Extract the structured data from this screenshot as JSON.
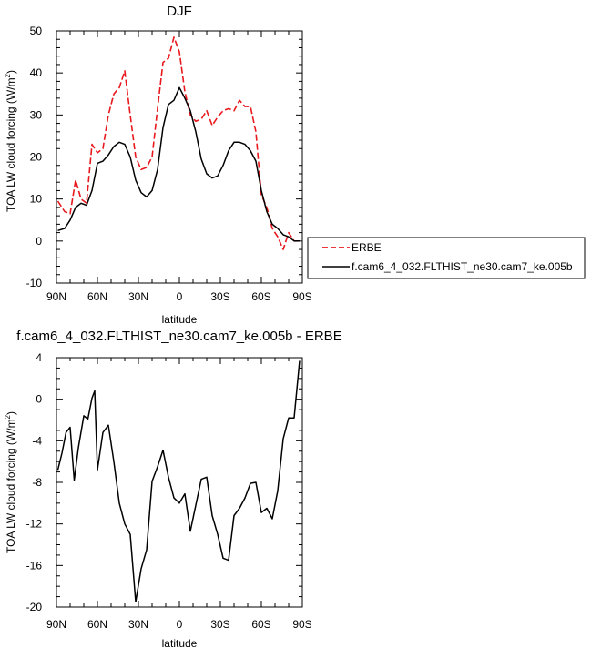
{
  "chart_data": [
    {
      "type": "line",
      "title": "DJF",
      "xlabel": "latitude",
      "ylabel_main": "TOA LW cloud forcing (W/m",
      "ylabel_sup": "2",
      "ylabel_close": ")",
      "xlim": [
        90,
        -90
      ],
      "ylim": [
        -10,
        50
      ],
      "x_ticks": [
        90,
        60,
        30,
        0,
        -30,
        -60,
        -90
      ],
      "x_tick_labels": [
        "90N",
        "60N",
        "30N",
        "0",
        "30S",
        "60S",
        "90S"
      ],
      "y_ticks": [
        -10,
        0,
        10,
        20,
        30,
        40,
        50
      ],
      "y_tick_labels": [
        "-10",
        "0",
        "10",
        "20",
        "30",
        "40",
        "50"
      ],
      "legend_placement": "right",
      "series": [
        {
          "name": "ERBE",
          "style": "dashed",
          "color": "#e8191e",
          "x": [
            89,
            84,
            80,
            76,
            72,
            68,
            64,
            60,
            56,
            52,
            48,
            44,
            40,
            36,
            32,
            28,
            24,
            20,
            16,
            12,
            8,
            4,
            0,
            -4,
            -8,
            -12,
            -16,
            -20,
            -24,
            -28,
            -32,
            -36,
            -40,
            -44,
            -48,
            -52,
            -56,
            -60,
            -64,
            -68,
            -72,
            -76,
            -80,
            -84,
            -88
          ],
          "y": [
            9.5,
            7,
            6.5,
            14.5,
            10,
            9,
            23,
            21,
            22,
            30,
            35,
            36.5,
            40.5,
            30,
            20,
            17,
            17.5,
            20,
            31.5,
            42.5,
            43.5,
            48.5,
            45,
            35.5,
            30,
            28.5,
            29,
            31,
            27.5,
            29.5,
            31,
            31.5,
            31,
            33.5,
            32,
            32,
            26,
            11,
            8,
            3,
            1,
            -2,
            2,
            0,
            0
          ]
        },
        {
          "name": "f.cam6_4_032.FLTHIST_ne30.cam7_ke.005b",
          "style": "solid",
          "color": "#000000",
          "x": [
            89,
            84,
            80,
            76,
            72,
            68,
            64,
            60,
            56,
            52,
            48,
            44,
            40,
            36,
            32,
            28,
            24,
            20,
            16,
            12,
            8,
            4,
            0,
            -4,
            -8,
            -12,
            -16,
            -20,
            -24,
            -28,
            -32,
            -36,
            -40,
            -44,
            -48,
            -52,
            -56,
            -60,
            -64,
            -68,
            -72,
            -76,
            -80,
            -84,
            -88
          ],
          "y": [
            2.5,
            3,
            5,
            8,
            9,
            8.5,
            12,
            18.5,
            19,
            20.5,
            22.5,
            23.5,
            23,
            20,
            14.5,
            11.5,
            10.5,
            12,
            17,
            27,
            32.5,
            33.5,
            36.5,
            34,
            31,
            26,
            19.5,
            16,
            15,
            15.5,
            18,
            21.5,
            23.5,
            23.5,
            23,
            21.5,
            19,
            12,
            7,
            4,
            3,
            1.5,
            1,
            0,
            0
          ]
        }
      ]
    },
    {
      "type": "line",
      "title": "f.cam6_4_032.FLTHIST_ne30.cam7_ke.005b - ERBE",
      "xlabel": "latitude",
      "ylabel_main": "TOA LW cloud forcing (W/m",
      "ylabel_sup": "2",
      "ylabel_close": ")",
      "xlim": [
        90,
        -90
      ],
      "ylim": [
        -20,
        4
      ],
      "x_ticks": [
        90,
        60,
        30,
        0,
        -30,
        -60,
        -90
      ],
      "x_tick_labels": [
        "90N",
        "60N",
        "30N",
        "0",
        "30S",
        "60S",
        "90S"
      ],
      "y_ticks": [
        -20,
        -16,
        -12,
        -8,
        -4,
        0,
        4
      ],
      "y_tick_labels": [
        "-20",
        "-16",
        "-12",
        "-8",
        "-4",
        "0",
        "4"
      ],
      "series": [
        {
          "style": "solid",
          "color": "#000000",
          "x": [
            89,
            86,
            83,
            80,
            77,
            74,
            70,
            67,
            64,
            62,
            60,
            56,
            52,
            48,
            44,
            40,
            36,
            32,
            28,
            24,
            20,
            16,
            12,
            8,
            4,
            0,
            -4,
            -8,
            -12,
            -16,
            -20,
            -24,
            -28,
            -32,
            -36,
            -40,
            -44,
            -48,
            -52,
            -56,
            -60,
            -64,
            -68,
            -72,
            -76,
            -80,
            -84,
            -88
          ],
          "y": [
            -6.8,
            -5.2,
            -3.2,
            -2.7,
            -7.8,
            -4.7,
            -1.6,
            -1.9,
            0.1,
            0.8,
            -6.8,
            -3.2,
            -2.5,
            -6,
            -10,
            -12,
            -13,
            -19.5,
            -16.3,
            -14.5,
            -7.9,
            -6.5,
            -4.9,
            -7.5,
            -9.5,
            -10,
            -9.1,
            -12.7,
            -10.2,
            -7.7,
            -7.5,
            -11.2,
            -13,
            -15.3,
            -15.5,
            -11.2,
            -10.5,
            -9.5,
            -8.1,
            -8,
            -10.9,
            -10.5,
            -11.5,
            -8.8,
            -3.8,
            -1.8,
            -1.8,
            3.7
          ]
        }
      ]
    }
  ]
}
